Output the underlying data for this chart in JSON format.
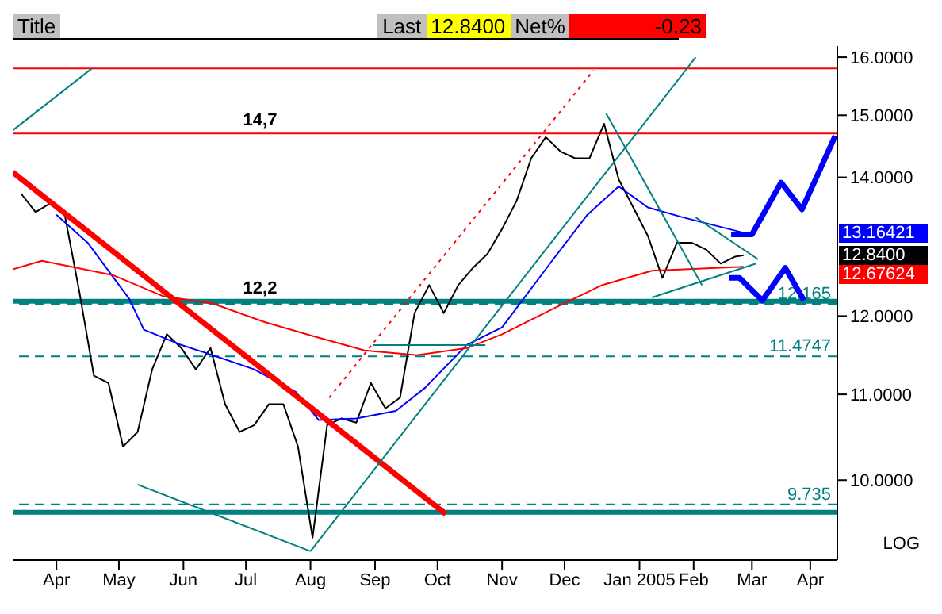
{
  "chart_data": {
    "type": "line",
    "log": true,
    "grid": false,
    "legend": false,
    "marker": "none",
    "line_style": "solid",
    "xlim": [
      "2004-03-25",
      "2005-04-25"
    ],
    "ylim": [
      9.15,
      16.2
    ],
    "xticks": [
      {
        "value": "2004-04-15",
        "label": "Apr"
      },
      {
        "value": "2004-05-15",
        "label": "May"
      },
      {
        "value": "2004-06-15",
        "label": "Jun"
      },
      {
        "value": "2004-07-15",
        "label": "Jul"
      },
      {
        "value": "2004-08-15",
        "label": "Aug"
      },
      {
        "value": "2004-09-15",
        "label": "Sep"
      },
      {
        "value": "2004-10-15",
        "label": "Oct"
      },
      {
        "value": "2004-11-15",
        "label": "Nov"
      },
      {
        "value": "2004-12-15",
        "label": "Dec"
      },
      {
        "value": "2005-01-20",
        "label": "Jan 2005"
      },
      {
        "value": "2005-02-15",
        "label": "Feb"
      },
      {
        "value": "2005-03-15",
        "label": "Mar"
      },
      {
        "value": "2005-04-12",
        "label": "Apr"
      }
    ],
    "yticks": [
      {
        "value": 10,
        "label": "10.0000"
      },
      {
        "value": 11,
        "label": "11.0000"
      },
      {
        "value": 12,
        "label": "12.0000"
      },
      {
        "value": 14,
        "label": "14.0000"
      },
      {
        "value": 15,
        "label": "15.0000"
      },
      {
        "value": 16,
        "label": "16.0000"
      }
    ],
    "series": [
      {
        "color": "#000000",
        "x": [
          "2004-03-29",
          "2004-04-05",
          "2004-04-12",
          "2004-04-19",
          "2004-04-26",
          "2004-05-03",
          "2004-05-10",
          "2004-05-17",
          "2004-05-24",
          "2004-05-31",
          "2004-06-07",
          "2004-06-14",
          "2004-06-21",
          "2004-06-28",
          "2004-07-05",
          "2004-07-12",
          "2004-07-19",
          "2004-07-26",
          "2004-08-02",
          "2004-08-09",
          "2004-08-16",
          "2004-08-23",
          "2004-08-30",
          "2004-09-06",
          "2004-09-13",
          "2004-09-20",
          "2004-09-27",
          "2004-10-04",
          "2004-10-11",
          "2004-10-18",
          "2004-10-25",
          "2004-11-01",
          "2004-11-08",
          "2004-11-15",
          "2004-11-22",
          "2004-11-29",
          "2004-12-06",
          "2004-12-13",
          "2004-12-20",
          "2004-12-27",
          "2005-01-03",
          "2005-01-10",
          "2005-01-17",
          "2005-01-24",
          "2005-01-31",
          "2005-02-07",
          "2005-02-14",
          "2005-02-21",
          "2005-02-28",
          "2005-03-07",
          "2005-03-11"
        ],
        "values": [
          13.75,
          13.47,
          13.6,
          13.43,
          12.33,
          11.23,
          11.14,
          10.38,
          10.55,
          11.31,
          11.76,
          11.58,
          11.31,
          11.58,
          10.88,
          10.55,
          10.63,
          10.88,
          10.88,
          10.38,
          9.38,
          10.63,
          10.71,
          10.66,
          11.14,
          10.83,
          10.96,
          12.04,
          12.42,
          12.04,
          12.42,
          12.66,
          12.86,
          13.22,
          13.64,
          14.3,
          14.64,
          14.41,
          14.3,
          14.3,
          14.86,
          13.97,
          13.54,
          13.12,
          12.52,
          13.02,
          13.02,
          12.92,
          12.72,
          12.82,
          12.84
        ]
      },
      {
        "color": "#0000ff",
        "x": [
          "2004-04-15",
          "2004-04-30",
          "2004-05-20",
          "2004-05-27",
          "2004-06-13",
          "2004-06-29",
          "2004-07-19",
          "2004-08-08",
          "2004-08-19",
          "2004-09-06",
          "2004-09-25",
          "2004-10-09",
          "2004-10-29",
          "2004-11-15",
          "2004-12-09",
          "2004-12-26",
          "2005-01-10",
          "2005-01-24",
          "2005-02-10",
          "2005-03-11"
        ],
        "values": [
          13.43,
          13.02,
          12.23,
          11.82,
          11.63,
          11.49,
          11.31,
          11.03,
          10.69,
          10.71,
          10.8,
          11.08,
          11.62,
          11.85,
          12.76,
          13.43,
          13.86,
          13.54,
          13.39,
          13.16421
        ]
      },
      {
        "color": "#ff0000",
        "x": [
          "2004-03-25",
          "2004-04-08",
          "2004-05-12",
          "2004-06-05",
          "2004-06-29",
          "2004-07-24",
          "2004-08-17",
          "2004-09-10",
          "2004-10-05",
          "2004-10-29",
          "2004-11-15",
          "2004-12-09",
          "2005-01-02",
          "2005-01-26",
          "2005-03-11"
        ],
        "values": [
          12.64,
          12.76,
          12.56,
          12.27,
          12.17,
          11.92,
          11.73,
          11.55,
          11.49,
          11.58,
          11.76,
          12.09,
          12.42,
          12.62,
          12.67624
        ]
      },
      {
        "color": "#ff0000",
        "x": [
          "2004-03-25",
          "2004-10-19"
        ],
        "values": [
          14.08,
          9.63
        ]
      },
      {
        "color": "#008080",
        "x": [
          "2004-03-25",
          "2004-05-02"
        ],
        "values": [
          14.75,
          15.8
        ]
      },
      {
        "color": "#008080",
        "x": [
          "2004-08-15",
          "2005-02-16"
        ],
        "values": [
          9.24,
          16.0
        ]
      },
      {
        "color": "#008080",
        "x": [
          "2004-05-24",
          "2004-08-15"
        ],
        "values": [
          9.95,
          9.24
        ]
      },
      {
        "color": "#ff0000",
        "line_style": "dotted",
        "x": [
          "2004-08-24",
          "2004-12-29"
        ],
        "values": [
          10.96,
          15.77
        ]
      },
      {
        "color": "#008080",
        "x": [
          "2005-02-16",
          "2005-03-18"
        ],
        "values": [
          13.39,
          12.78
        ]
      },
      {
        "color": "#008080",
        "x": [
          "2005-01-26",
          "2005-03-17"
        ],
        "values": [
          12.25,
          12.72
        ]
      },
      {
        "color": "#008080",
        "x": [
          "2005-01-04",
          "2005-02-19"
        ],
        "values": [
          15.03,
          12.42
        ]
      },
      {
        "color": "#008080",
        "x": [
          "2004-09-14",
          "2004-11-07"
        ],
        "values": [
          11.62,
          11.62
        ]
      },
      {
        "color": "#0000ff",
        "x": [
          "2005-03-05",
          "2005-03-15",
          "2005-03-29",
          "2005-04-08",
          "2005-04-24"
        ],
        "values": [
          13.14,
          13.14,
          13.92,
          13.51,
          14.66
        ]
      },
      {
        "color": "#0000ff",
        "x": [
          "2005-03-04",
          "2005-03-09",
          "2005-03-20",
          "2005-03-31",
          "2005-04-09"
        ],
        "values": [
          12.52,
          12.52,
          12.21,
          12.66,
          12.21
        ]
      }
    ],
    "ref_lines": [
      {
        "axis": "y",
        "value": 15.8,
        "color": "#ff0000"
      },
      {
        "axis": "y",
        "value": 14.7,
        "label": "14,7",
        "color": "#ff0000"
      },
      {
        "axis": "y",
        "value": 12.2,
        "label": "12,2",
        "color": "#008080"
      },
      {
        "axis": "y",
        "value": 12.165,
        "label": "12.165",
        "color": "#008080",
        "line_style": "dashed"
      },
      {
        "axis": "y",
        "value": 11.4747,
        "label": "11.4747",
        "color": "#008080",
        "line_style": "dashed"
      },
      {
        "axis": "y",
        "value": 9.735,
        "label": "9.735",
        "color": "#008080",
        "line_style": "dashed"
      },
      {
        "axis": "y",
        "value": 9.65,
        "color": "#008080"
      }
    ],
    "annotations": [
      "Title",
      "Last",
      "12.8400",
      "Net%",
      "-0.23",
      "LOG",
      "13.16421",
      "12.8400",
      "12.67624"
    ]
  }
}
